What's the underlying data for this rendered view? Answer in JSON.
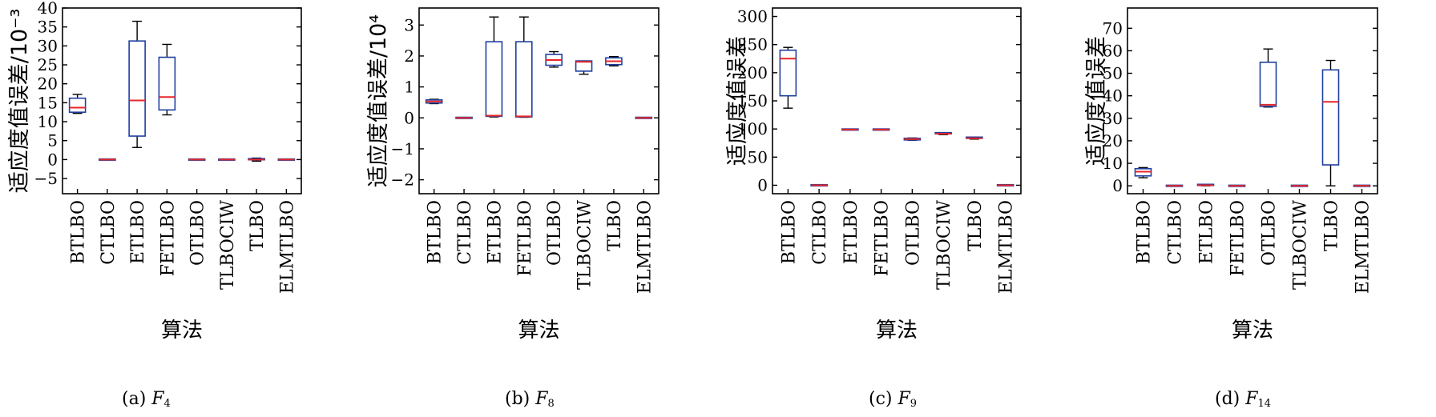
{
  "chart_data": [
    {
      "type": "box",
      "caption": {
        "prefix": "(a) ",
        "var": "F",
        "sub": "4"
      },
      "ylabel": "适应度值误差/10⁻³",
      "xlabel": "算法",
      "ylim": [
        -9,
        40
      ],
      "yticks": [
        -5,
        0,
        5,
        10,
        15,
        20,
        25,
        30,
        35,
        40
      ],
      "categories": [
        "BTLBO",
        "CTLBO",
        "ETLBO",
        "FETLBO",
        "OTLBO",
        "TLBOCIW",
        "TLBO",
        "ELMTLBO"
      ],
      "boxes": [
        {
          "min": 12.2,
          "q1": 12.5,
          "median": 13.7,
          "q3": 16.2,
          "max": 17.2
        },
        {
          "min": 0,
          "q1": 0,
          "median": 0,
          "q3": 0,
          "max": 0
        },
        {
          "min": 3.2,
          "q1": 6.2,
          "median": 15.6,
          "q3": 31.3,
          "max": 36.5
        },
        {
          "min": 11.8,
          "q1": 13.1,
          "median": 16.5,
          "q3": 27.0,
          "max": 30.4
        },
        {
          "min": 0,
          "q1": 0,
          "median": 0,
          "q3": 0,
          "max": 0
        },
        {
          "min": 0,
          "q1": 0,
          "median": 0,
          "q3": 0,
          "max": 0
        },
        {
          "min": -0.4,
          "q1": -0.1,
          "median": 0,
          "q3": 0.1,
          "max": 0.4
        },
        {
          "min": 0,
          "q1": 0,
          "median": 0,
          "q3": 0,
          "max": 0
        }
      ]
    },
    {
      "type": "box",
      "caption": {
        "prefix": "(b) ",
        "var": "F",
        "sub": "8"
      },
      "ylabel": "适应度值误差/10⁴",
      "xlabel": "算法",
      "ylim": [
        -2.45,
        3.55
      ],
      "yticks": [
        -2,
        -1,
        0,
        1,
        2,
        3
      ],
      "categories": [
        "BTLBO",
        "CTLBO",
        "ETLBO",
        "FETLBO",
        "OTLBO",
        "TLBOCIW",
        "TLBO",
        "ELMTLBO"
      ],
      "boxes": [
        {
          "min": 0.46,
          "q1": 0.48,
          "median": 0.53,
          "q3": 0.58,
          "max": 0.6
        },
        {
          "min": 0,
          "q1": 0,
          "median": 0,
          "q3": 0,
          "max": 0
        },
        {
          "min": 0.03,
          "q1": 0.05,
          "median": 0.07,
          "q3": 2.46,
          "max": 3.26
        },
        {
          "min": 0.02,
          "q1": 0.03,
          "median": 0.05,
          "q3": 2.46,
          "max": 3.26
        },
        {
          "min": 1.64,
          "q1": 1.7,
          "median": 1.87,
          "q3": 2.05,
          "max": 2.14
        },
        {
          "min": 1.41,
          "q1": 1.51,
          "median": 1.81,
          "q3": 1.84,
          "max": 1.84
        },
        {
          "min": 1.68,
          "q1": 1.72,
          "median": 1.83,
          "q3": 1.94,
          "max": 1.98
        },
        {
          "min": 0,
          "q1": 0,
          "median": 0,
          "q3": 0,
          "max": 0
        }
      ]
    },
    {
      "type": "box",
      "caption": {
        "prefix": "(c) ",
        "var": "F",
        "sub": "9"
      },
      "ylabel": "适应度值误差",
      "xlabel": "算法",
      "ylim": [
        -15,
        315
      ],
      "yticks": [
        0,
        50,
        100,
        150,
        200,
        250,
        300
      ],
      "categories": [
        "BTLBO",
        "CTLBO",
        "ETLBO",
        "FETLBO",
        "OTLBO",
        "TLBOCIW",
        "TLBO",
        "ELMTLBO"
      ],
      "boxes": [
        {
          "min": 137,
          "q1": 159,
          "median": 225,
          "q3": 240,
          "max": 245
        },
        {
          "min": 0,
          "q1": 0,
          "median": 0,
          "q3": 0,
          "max": 0
        },
        {
          "min": 99,
          "q1": 99,
          "median": 99,
          "q3": 99,
          "max": 99
        },
        {
          "min": 99,
          "q1": 99,
          "median": 99,
          "q3": 99,
          "max": 99
        },
        {
          "min": 80,
          "q1": 80.5,
          "median": 82,
          "q3": 83.5,
          "max": 84
        },
        {
          "min": 90,
          "q1": 90.5,
          "median": 91.5,
          "q3": 92.5,
          "max": 93
        },
        {
          "min": 82,
          "q1": 82.5,
          "median": 83.5,
          "q3": 84.5,
          "max": 85
        },
        {
          "min": 0,
          "q1": 0,
          "median": 0,
          "q3": 0,
          "max": 0
        }
      ]
    },
    {
      "type": "box",
      "caption": {
        "prefix": "(d) ",
        "var": "F",
        "sub": "14"
      },
      "ylabel": "适应度值误差",
      "xlabel": "算法",
      "ylim": [
        -3.5,
        79
      ],
      "yticks": [
        0,
        10,
        20,
        30,
        40,
        50,
        60,
        70
      ],
      "categories": [
        "BTLBO",
        "CTLBO",
        "ETLBO",
        "FETLBO",
        "OTLBO",
        "TLBOCIW",
        "TLBO",
        "ELMTLBO"
      ],
      "boxes": [
        {
          "min": 3.6,
          "q1": 4.4,
          "median": 6.3,
          "q3": 7.6,
          "max": 8.1
        },
        {
          "min": 0,
          "q1": 0,
          "median": 0,
          "q3": 0,
          "max": 0
        },
        {
          "min": 0,
          "q1": 0.1,
          "median": 0.25,
          "q3": 0.4,
          "max": 0.5
        },
        {
          "min": 0,
          "q1": 0,
          "median": 0,
          "q3": 0,
          "max": 0
        },
        {
          "min": 35.0,
          "q1": 35.3,
          "median": 36.0,
          "q3": 54.9,
          "max": 60.8
        },
        {
          "min": 0,
          "q1": 0,
          "median": 0,
          "q3": 0,
          "max": 0
        },
        {
          "min": 0,
          "q1": 9.3,
          "median": 37.3,
          "q3": 51.5,
          "max": 55.7
        },
        {
          "min": 0,
          "q1": 0,
          "median": 0,
          "q3": 0,
          "max": 0
        }
      ]
    }
  ]
}
